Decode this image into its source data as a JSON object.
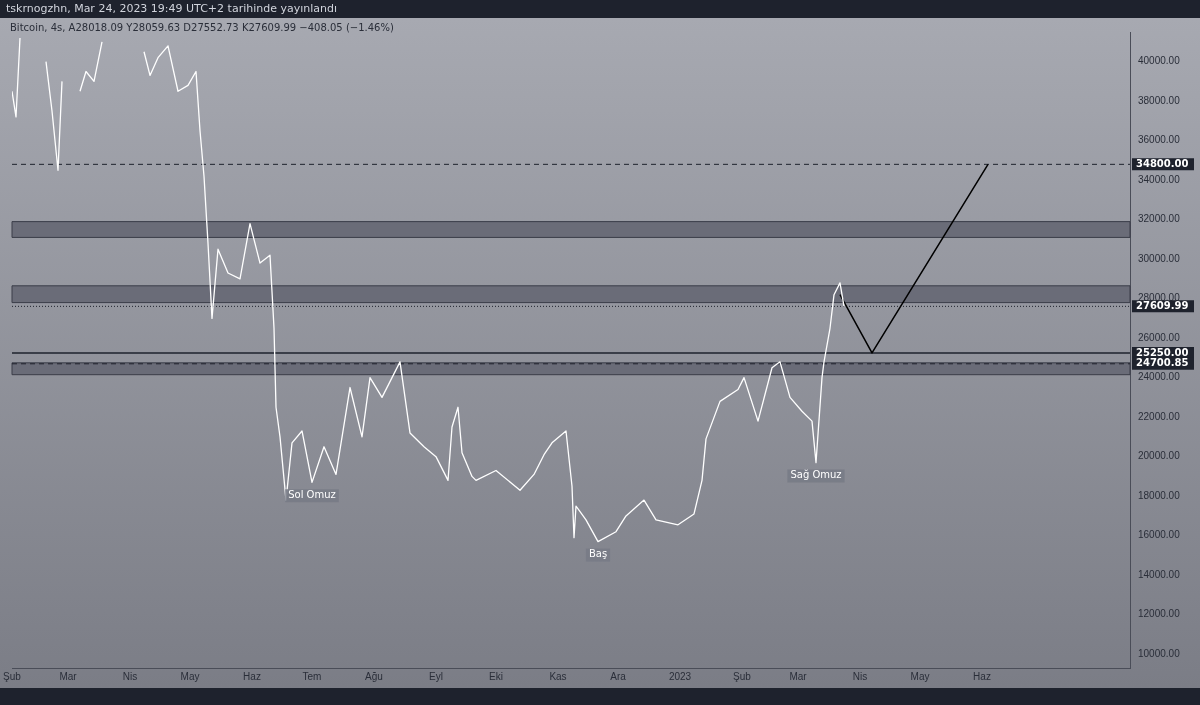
{
  "chart_data": {
    "type": "line",
    "title": "tskrnogzhn, Mar 24, 2023 19:49 UTC+2 tarihinde yayınlandı",
    "subtitle": "Bitcoin, 4s, A28018.09 Y28059.63 D27552.73 K27609.99 −408.05 (−1.46%)",
    "xlim": [
      "2022-02-01",
      "2023-08-14"
    ],
    "ylim": [
      9300,
      41500
    ],
    "xticks": [
      {
        "value": "2022-02-01",
        "label": "Şub"
      },
      {
        "value": "2022-03-01",
        "label": "Mar"
      },
      {
        "value": "2022-04-01",
        "label": "Nis"
      },
      {
        "value": "2022-05-01",
        "label": "May"
      },
      {
        "value": "2022-06-01",
        "label": "Haz"
      },
      {
        "value": "2022-07-01",
        "label": "Tem"
      },
      {
        "value": "2022-08-01",
        "label": "Ağu"
      },
      {
        "value": "2022-09-01",
        "label": "Eyl"
      },
      {
        "value": "2022-10-01",
        "label": "Eki"
      },
      {
        "value": "2022-11-01",
        "label": "Kas"
      },
      {
        "value": "2022-12-01",
        "label": "Ara"
      },
      {
        "value": "2023-01-01",
        "label": "2023"
      },
      {
        "value": "2023-02-01",
        "label": "Şub"
      },
      {
        "value": "2023-03-01",
        "label": "Mar"
      },
      {
        "value": "2023-04-01",
        "label": "Nis"
      },
      {
        "value": "2023-05-01",
        "label": "May"
      },
      {
        "value": "2023-06-01",
        "label": "Haz"
      }
    ],
    "yticks": [
      {
        "value": 10000,
        "label": "10000.00"
      },
      {
        "value": 12000,
        "label": "12000.00"
      },
      {
        "value": 14000,
        "label": "14000.00"
      },
      {
        "value": 16000,
        "label": "16000.00"
      },
      {
        "value": 18000,
        "label": "18000.00"
      },
      {
        "value": 20000,
        "label": "20000.00"
      },
      {
        "value": 22000,
        "label": "22000.00"
      },
      {
        "value": 24000,
        "label": "24000.00"
      },
      {
        "value": 26000,
        "label": "26000.00"
      },
      {
        "value": 28000,
        "label": "28000.00"
      },
      {
        "value": 30000,
        "label": "30000.00"
      },
      {
        "value": 32000,
        "label": "32000.00"
      },
      {
        "value": 34000,
        "label": "34000.00"
      },
      {
        "value": 36000,
        "label": "36000.00"
      },
      {
        "value": 38000,
        "label": "38000.00"
      },
      {
        "value": 40000,
        "label": "40000.00"
      }
    ],
    "grid": false,
    "legend": false,
    "marker": "none",
    "series": [
      {
        "color": "#ffffff",
        "x": [
          "2022-02-01",
          "2022-02-03",
          "2022-02-05",
          "2022-02-08",
          "2022-02-18",
          "2022-02-21",
          "2022-02-24",
          "2022-02-26",
          "2022-02-28",
          "2022-03-07",
          "2022-03-10",
          "2022-03-14",
          "2022-03-18",
          "2022-03-22",
          "2022-04-08",
          "2022-04-11",
          "2022-04-15",
          "2022-04-20",
          "2022-04-25",
          "2022-04-30",
          "2022-05-04",
          "2022-05-06",
          "2022-05-08",
          "2022-05-10",
          "2022-05-12",
          "2022-05-15",
          "2022-05-20",
          "2022-05-26",
          "2022-05-31",
          "2022-06-05",
          "2022-06-10",
          "2022-06-12",
          "2022-06-13",
          "2022-06-15",
          "2022-06-18",
          "2022-06-21",
          "2022-06-26",
          "2022-07-01",
          "2022-07-07",
          "2022-07-13",
          "2022-07-20",
          "2022-07-26",
          "2022-07-30",
          "2022-08-05",
          "2022-08-14",
          "2022-08-19",
          "2022-08-26",
          "2022-09-01",
          "2022-09-07",
          "2022-09-09",
          "2022-09-12",
          "2022-09-14",
          "2022-09-19",
          "2022-09-21",
          "2022-10-01",
          "2022-10-13",
          "2022-10-20",
          "2022-10-25",
          "2022-10-29",
          "2022-11-05",
          "2022-11-08",
          "2022-11-09",
          "2022-11-10",
          "2022-11-15",
          "2022-11-21",
          "2022-11-30",
          "2022-12-05",
          "2022-12-14",
          "2022-12-20",
          "2022-12-31",
          "2023-01-08",
          "2023-01-12",
          "2023-01-14",
          "2023-01-21",
          "2023-01-30",
          "2023-02-02",
          "2023-02-09",
          "2023-02-16",
          "2023-02-20",
          "2023-02-25",
          "2023-03-03",
          "2023-03-08",
          "2023-03-10",
          "2023-03-13",
          "2023-03-14",
          "2023-03-17",
          "2023-03-19",
          "2023-03-22",
          "2023-03-24"
        ],
        "values": [
          38500,
          37200,
          41200,
          null,
          40000,
          37500,
          34500,
          39000,
          null,
          38500,
          39500,
          39000,
          41000,
          null,
          40500,
          39300,
          40200,
          40800,
          38500,
          38800,
          39500,
          36500,
          34200,
          30800,
          27000,
          30500,
          29300,
          29000,
          31800,
          29800,
          30200,
          26500,
          22500,
          21000,
          17800,
          20700,
          21300,
          18700,
          20500,
          19100,
          23500,
          21000,
          24000,
          23000,
          24800,
          21200,
          20500,
          20000,
          18800,
          21500,
          22500,
          20200,
          19000,
          18800,
          19300,
          18300,
          19100,
          20100,
          20700,
          21300,
          18500,
          15900,
          17500,
          16800,
          15700,
          16200,
          17000,
          17800,
          16800,
          16550,
          17100,
          18800,
          20900,
          22800,
          23400,
          24000,
          21800,
          24500,
          24800,
          23000,
          22300,
          21800,
          19700,
          24000,
          24800,
          26500,
          28200,
          28800,
          27610
        ]
      },
      {
        "type": "line",
        "color": "#000000",
        "x": [
          "2023-03-22",
          "2023-04-07",
          "2023-06-04"
        ],
        "values": [
          28200,
          25250,
          34800
        ]
      }
    ],
    "bands": [
      {
        "axis": "y",
        "from": 31100,
        "to": 31900,
        "color": "#6a6c78"
      },
      {
        "axis": "y",
        "from": 27800,
        "to": 28650,
        "color": "#6a6c78"
      },
      {
        "axis": "y",
        "from": 24150,
        "to": 24750,
        "color": "#6a6c78"
      }
    ],
    "ref_lines": [
      {
        "axis": "y",
        "value": 34800,
        "label": "34800.00",
        "line_style": "dashed",
        "color": "#1e222d"
      },
      {
        "axis": "y",
        "value": 27609.99,
        "label": "27609.99",
        "line_style": "dotted",
        "color": "#1e222d"
      },
      {
        "axis": "y",
        "value": 25250,
        "label": "25250.00",
        "line_style": "solid",
        "color": "#1e222d"
      },
      {
        "axis": "y",
        "value": 24700.85,
        "label": "24700.85",
        "line_style": "dashed",
        "color": "#1e222d"
      }
    ],
    "annotations": [
      {
        "text": "Sol Omuz",
        "x": "2022-07-01",
        "y": 18700
      },
      {
        "text": "Baş",
        "x": "2022-11-21",
        "y": 15700
      },
      {
        "text": "Sağ Omuz",
        "x": "2023-03-10",
        "y": 19700
      }
    ]
  }
}
